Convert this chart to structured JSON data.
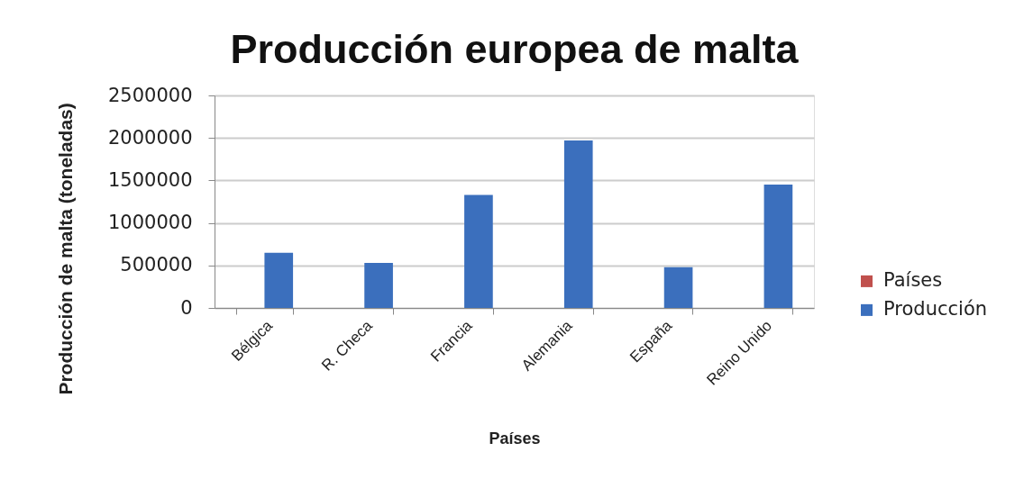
{
  "chart_data": {
    "type": "bar",
    "title": "Producción europea de malta",
    "xlabel": "Países",
    "ylabel": "Producción de malta (toneladas)",
    "categories": [
      "Bélgica",
      "R. Checa",
      "Francia",
      "Alemania",
      "España",
      "Reino Unido"
    ],
    "series": [
      {
        "name": "Países",
        "color": "#c0504d",
        "values": [
          null,
          null,
          null,
          null,
          null,
          null
        ]
      },
      {
        "name": "Producción",
        "color": "#3b6fbd",
        "values": [
          650000,
          530000,
          1330000,
          1970000,
          480000,
          1450000
        ]
      }
    ],
    "ylim": [
      0,
      2500000
    ],
    "yticks": [
      0,
      500000,
      1000000,
      1500000,
      2000000,
      2500000
    ],
    "grid": "y",
    "legend": "right"
  }
}
